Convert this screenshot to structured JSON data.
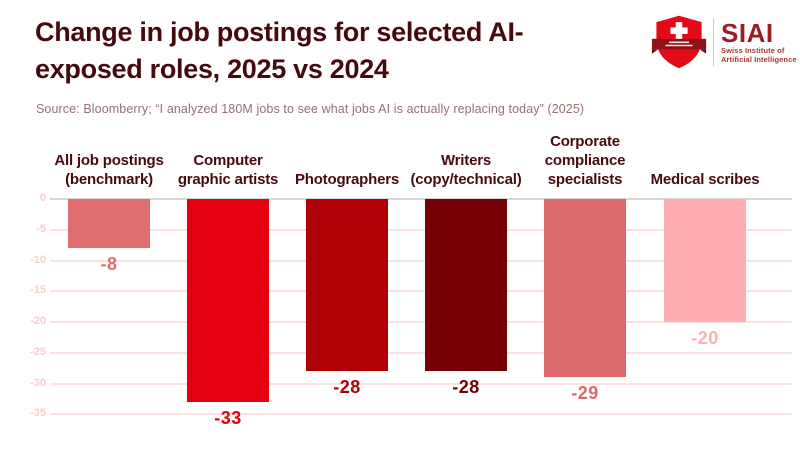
{
  "header": {
    "title": "Change in job postings for selected AI-\nexposed roles, 2025 vs 2024",
    "source": "Source: Bloomberry; “I analyzed 180M jobs to see what jobs AI is actually replacing today” (2025)"
  },
  "logo": {
    "name": "SIAI",
    "subtitle_line1": "Swiss Institute of",
    "subtitle_line2": "Artificial Intelligence",
    "shield_color": "#e20a16",
    "banner_color": "#8f1118",
    "cross_color": "#ffffff",
    "text_color": "#9e1b21"
  },
  "chart_data": {
    "type": "bar",
    "title": "Change in job postings for selected AI-exposed roles, 2025 vs 2024",
    "categories": [
      "All job postings\n(benchmark)",
      "Computer\ngraphic artists",
      "Photographers",
      "Writers\n(copy/technical)",
      "Corporate\ncompliance\nspecialists",
      "Medical scribes"
    ],
    "values": [
      -8,
      -33,
      -28,
      -28,
      -29,
      -20
    ],
    "value_labels": [
      "-8",
      "-33",
      "-28",
      "-28",
      "-29",
      "-20"
    ],
    "bar_colors": [
      "#e06e6e",
      "#e50011",
      "#b20008",
      "#740006",
      "#dd6a6a",
      "#ffafb2"
    ],
    "xlabel": "",
    "ylabel": "",
    "ylim": [
      -35,
      0
    ],
    "yticks": [
      0,
      -5,
      -10,
      -15,
      -20,
      -25,
      -30,
      -35
    ],
    "grid": true,
    "legend": false,
    "grid_color": "#fae3e1",
    "zero_line_color": "#d8d8d8",
    "tick_label_color": "#f9cfcd",
    "category_label_color": "#470b0f"
  }
}
